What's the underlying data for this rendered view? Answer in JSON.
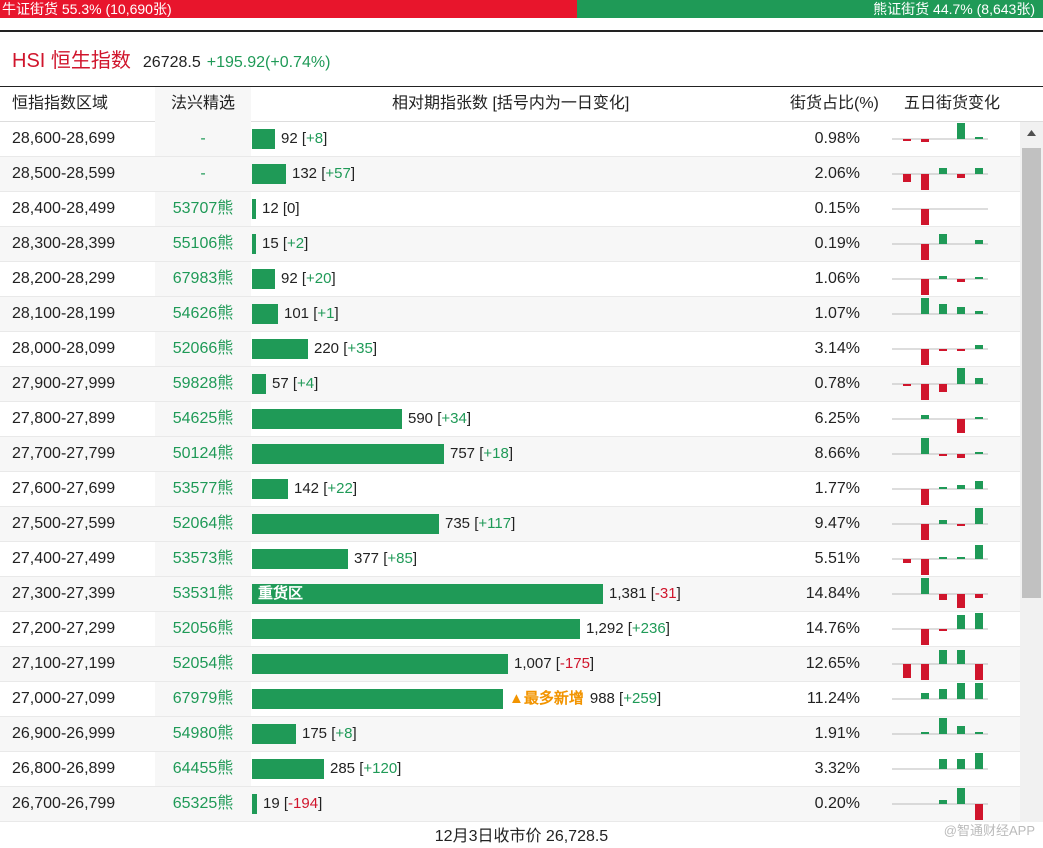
{
  "ratio": {
    "bull_label": "牛证街货 55.3% (10,690张)",
    "bear_label": "熊证街货 44.7% (8,643张)",
    "bull_pct": 55.3,
    "bear_pct": 44.7,
    "bull_color": "#e8152c",
    "bear_color": "#1f9a57"
  },
  "header": {
    "title": "HSI 恒生指数",
    "price": "26728.5",
    "change": "+195.92(+0.74%)"
  },
  "columns": {
    "range": "恒指指数区域",
    "pick": "法兴精选",
    "bar": "相对期指张数 [括号内为一日变化]",
    "pct": "街货占比(%)",
    "trend": "五日街货变化"
  },
  "rows": [
    {
      "range": "28,600-28,699",
      "pick": "-",
      "count": 92,
      "count_text": "92",
      "change": "+8",
      "pct": "0.98%",
      "trend": [
        -2,
        -3,
        0,
        18,
        2
      ]
    },
    {
      "range": "28,500-28,599",
      "pick": "-",
      "count": 132,
      "count_text": "132",
      "change": "+57",
      "pct": "2.06%",
      "trend": [
        -8,
        -18,
        6,
        -4,
        6
      ]
    },
    {
      "range": "28,400-28,499",
      "pick": "53707熊",
      "count": 12,
      "count_text": "12",
      "change": "0",
      "pct": "0.15%",
      "trend": [
        0,
        -16,
        0,
        0,
        0
      ]
    },
    {
      "range": "28,300-28,399",
      "pick": "55106熊",
      "count": 15,
      "count_text": "15",
      "change": "+2",
      "pct": "0.19%",
      "trend": [
        0,
        -18,
        10,
        0,
        4
      ]
    },
    {
      "range": "28,200-28,299",
      "pick": "67983熊",
      "count": 92,
      "count_text": "92",
      "change": "+20",
      "pct": "1.06%",
      "trend": [
        0,
        -18,
        3,
        -3,
        2
      ]
    },
    {
      "range": "28,100-28,199",
      "pick": "54626熊",
      "count": 101,
      "count_text": "101",
      "change": "+1",
      "pct": "1.07%",
      "trend": [
        0,
        18,
        10,
        7,
        3
      ]
    },
    {
      "range": "28,000-28,099",
      "pick": "52066熊",
      "count": 220,
      "count_text": "220",
      "change": "+35",
      "pct": "3.14%",
      "trend": [
        0,
        -16,
        -2,
        -2,
        4
      ]
    },
    {
      "range": "27,900-27,999",
      "pick": "59828熊",
      "count": 57,
      "count_text": "57",
      "change": "+4",
      "pct": "0.78%",
      "trend": [
        -2,
        -18,
        -8,
        16,
        6
      ]
    },
    {
      "range": "27,800-27,899",
      "pick": "54625熊",
      "count": 590,
      "count_text": "590",
      "change": "+34",
      "pct": "6.25%",
      "trend": [
        0,
        4,
        0,
        -14,
        2
      ]
    },
    {
      "range": "27,700-27,799",
      "pick": "50124熊",
      "count": 757,
      "count_text": "757",
      "change": "+18",
      "pct": "8.66%",
      "trend": [
        0,
        16,
        -2,
        -4,
        2
      ]
    },
    {
      "range": "27,600-27,699",
      "pick": "53577熊",
      "count": 142,
      "count_text": "142",
      "change": "+22",
      "pct": "1.77%",
      "trend": [
        0,
        -16,
        2,
        4,
        8
      ]
    },
    {
      "range": "27,500-27,599",
      "pick": "52064熊",
      "count": 735,
      "count_text": "735",
      "change": "+117",
      "pct": "9.47%",
      "trend": [
        0,
        -18,
        4,
        -2,
        16
      ]
    },
    {
      "range": "27,400-27,499",
      "pick": "53573熊",
      "count": 377,
      "count_text": "377",
      "change": "+85",
      "pct": "5.51%",
      "trend": [
        -4,
        -18,
        2,
        2,
        14
      ]
    },
    {
      "range": "27,300-27,399",
      "pick": "53531熊",
      "count": 1381,
      "count_text": "1,381",
      "change": "-31",
      "pct": "14.84%",
      "trend": [
        0,
        16,
        -6,
        -14,
        -4
      ],
      "tag": "重货区"
    },
    {
      "range": "27,200-27,299",
      "pick": "52056熊",
      "count": 1292,
      "count_text": "1,292",
      "change": "+236",
      "pct": "14.76%",
      "trend": [
        0,
        -16,
        -2,
        14,
        18
      ]
    },
    {
      "range": "27,100-27,199",
      "pick": "52054熊",
      "count": 1007,
      "count_text": "1,007",
      "change": "-175",
      "pct": "12.65%",
      "trend": [
        -14,
        -16,
        14,
        14,
        -18
      ]
    },
    {
      "range": "27,000-27,099",
      "pick": "67979熊",
      "count": 988,
      "count_text": "988",
      "change": "+259",
      "pct": "11.24%",
      "trend": [
        0,
        6,
        10,
        16,
        18
      ],
      "badge": "▲最多新增"
    },
    {
      "range": "26,900-26,999",
      "pick": "54980熊",
      "count": 175,
      "count_text": "175",
      "change": "+8",
      "pct": "1.91%",
      "trend": [
        0,
        2,
        16,
        8,
        2
      ]
    },
    {
      "range": "26,800-26,899",
      "pick": "64455熊",
      "count": 285,
      "count_text": "285",
      "change": "+120",
      "pct": "3.32%",
      "trend": [
        0,
        0,
        10,
        10,
        18
      ]
    },
    {
      "range": "26,700-26,799",
      "pick": "65325熊",
      "count": 19,
      "count_text": "19",
      "change": "-194",
      "pct": "0.20%",
      "trend": [
        0,
        0,
        4,
        16,
        -16
      ]
    }
  ],
  "footer": "12月3日收市价 26,728.5",
  "watermark": "@智通财经APP"
}
